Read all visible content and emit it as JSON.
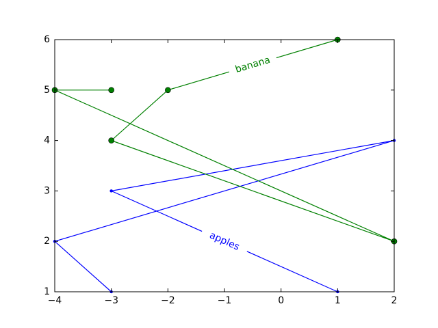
{
  "chart_data": {
    "type": "line",
    "title": "",
    "xlabel": "",
    "ylabel": "",
    "xlim": [
      -4,
      2
    ],
    "ylim": [
      1,
      6
    ],
    "xticks": [
      -4,
      -3,
      -2,
      -1,
      0,
      1,
      2
    ],
    "yticks": [
      1,
      2,
      3,
      4,
      5,
      6
    ],
    "grid": false,
    "series": [
      {
        "name": "apples",
        "color": "#0000ff",
        "marker": "small-dot",
        "x": [
          -3,
          -4,
          2,
          -3,
          1
        ],
        "y": [
          1,
          2,
          4,
          3,
          1
        ],
        "label_segment": 3
      },
      {
        "name": "banana",
        "color": "#008000",
        "marker": "circle",
        "x": [
          -3,
          -4,
          2,
          -3,
          -2,
          1
        ],
        "y": [
          5,
          5,
          2,
          4,
          5,
          6
        ],
        "label_segment": 4
      }
    ]
  }
}
